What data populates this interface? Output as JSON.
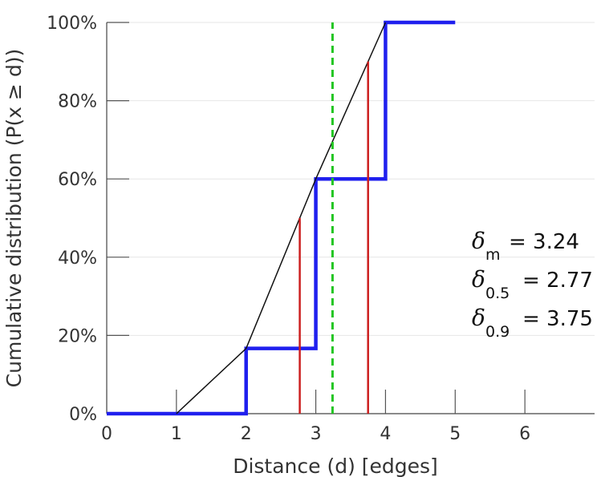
{
  "chart_data": {
    "type": "line",
    "xlabel": "Distance (d) [edges]",
    "ylabel": "Cumulative distribution (P(x ≥ d))",
    "xlim": [
      0,
      7
    ],
    "ylim": [
      0,
      1
    ],
    "xticks": [
      0,
      1,
      2,
      3,
      4,
      5,
      6
    ],
    "yticks": [
      0,
      0.2,
      0.4,
      0.6,
      0.8,
      1.0
    ],
    "ytick_labels": [
      "0%",
      "20%",
      "40%",
      "60%",
      "80%",
      "100%"
    ],
    "grid": "horizontal",
    "series": [
      {
        "style": "step",
        "color": "#1f1fee",
        "x": [
          0,
          2,
          2,
          3,
          3,
          4,
          4,
          5
        ],
        "y": [
          0,
          0,
          0.1667,
          0.1667,
          0.6,
          0.6,
          1.0,
          1.0
        ]
      },
      {
        "style": "line",
        "color": "#111111",
        "x": [
          1,
          2,
          3,
          4
        ],
        "y": [
          0,
          0.1667,
          0.6,
          1.0
        ]
      }
    ],
    "vlines": [
      {
        "x": 2.77,
        "y": [
          0,
          0.5
        ],
        "color": "#cc1f1f",
        "style": "solid"
      },
      {
        "x": 3.75,
        "y": [
          0,
          0.9
        ],
        "color": "#cc1f1f",
        "style": "solid"
      },
      {
        "x": 3.24,
        "y": [
          0,
          1.0
        ],
        "color": "#22c522",
        "style": "dashed"
      }
    ],
    "annotations": [
      {
        "symbol": "δ",
        "subscript": "m",
        "text": "= 3.24"
      },
      {
        "symbol": "δ",
        "subscript": "0.5",
        "text": "= 2.77"
      },
      {
        "symbol": "δ",
        "subscript": "0.9",
        "text": "= 3.75"
      }
    ]
  }
}
